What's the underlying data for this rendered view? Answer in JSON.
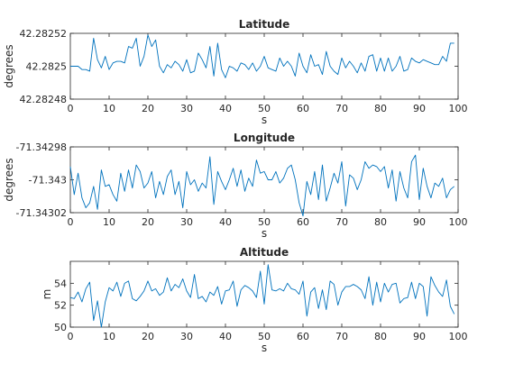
{
  "chart_data": [
    {
      "type": "line",
      "title": "Latitude",
      "xlabel": "s",
      "ylabel": "degrees",
      "xlim": [
        0,
        100
      ],
      "ylim": [
        42.28248,
        42.28252
      ],
      "xticks": [
        "0",
        "10",
        "20",
        "30",
        "40",
        "50",
        "60",
        "70",
        "80",
        "90",
        "100"
      ],
      "yticks": [
        "42.28252",
        "42.2825",
        "42.28248"
      ],
      "ytick_values": [
        42.28252,
        42.2825,
        42.28248
      ],
      "series": [
        {
          "color": "#0072BD",
          "x": [
            0,
            1,
            2,
            3,
            4,
            5,
            6,
            7,
            8,
            9,
            10,
            11,
            12,
            13,
            14,
            15,
            16,
            17,
            18,
            19,
            20,
            21,
            22,
            23,
            24,
            25,
            26,
            27,
            28,
            29,
            30,
            31,
            32,
            33,
            34,
            35,
            36,
            37,
            38,
            39,
            40,
            41,
            42,
            43,
            44,
            45,
            46,
            47,
            48,
            49,
            50,
            51,
            52,
            53,
            54,
            55,
            56,
            57,
            58,
            59,
            60,
            61,
            62,
            63,
            64,
            65,
            66,
            67,
            68,
            69,
            70,
            71,
            72,
            73,
            74,
            75,
            76,
            77,
            78,
            79,
            80,
            81,
            82,
            83,
            84,
            85,
            86,
            87,
            88,
            89,
            90,
            91,
            92,
            93,
            94,
            95,
            96,
            97,
            98,
            99
          ],
          "y": [
            42.2825,
            42.2825,
            42.2825,
            42.282498,
            42.282498,
            42.282497,
            42.282517,
            42.282504,
            42.282499,
            42.282506,
            42.282498,
            42.282502,
            42.282503,
            42.282503,
            42.282502,
            42.282512,
            42.282511,
            42.282517,
            42.2825,
            42.282506,
            42.282519,
            42.282512,
            42.282516,
            42.2825,
            42.282496,
            42.282501,
            42.282499,
            42.282503,
            42.282501,
            42.282497,
            42.282504,
            42.282496,
            42.282497,
            42.282508,
            42.282504,
            42.282499,
            42.282512,
            42.282494,
            42.282514,
            42.282498,
            42.282493,
            42.2825,
            42.282499,
            42.282497,
            42.282502,
            42.282501,
            42.282498,
            42.282502,
            42.282497,
            42.2825,
            42.282506,
            42.282499,
            42.282498,
            42.282497,
            42.282505,
            42.2825,
            42.282503,
            42.2825,
            42.282494,
            42.282508,
            42.2825,
            42.282496,
            42.282507,
            42.2825,
            42.282501,
            42.282495,
            42.282509,
            42.2825,
            42.282497,
            42.282495,
            42.282505,
            42.282499,
            42.282503,
            42.2825,
            42.282496,
            42.282502,
            42.282497,
            42.282506,
            42.282507,
            42.282497,
            42.282505,
            42.282497,
            42.282505,
            42.282497,
            42.2825,
            42.282506,
            42.282497,
            42.282498,
            42.282505,
            42.282503,
            42.282502,
            42.282504,
            42.282503,
            42.282502,
            42.282501,
            42.282501,
            42.282506,
            42.282503,
            42.282514,
            42.282514
          ]
        }
      ]
    },
    {
      "type": "line",
      "title": "Longitude",
      "xlabel": "s",
      "ylabel": "degrees",
      "xlim": [
        0,
        100
      ],
      "ylim": [
        -71.34302,
        -71.34298
      ],
      "xticks": [
        "0",
        "10",
        "20",
        "30",
        "40",
        "50",
        "60",
        "70",
        "80",
        "90",
        "100"
      ],
      "yticks": [
        "-71.34298",
        "-71.343",
        "-71.34302"
      ],
      "ytick_values": [
        -71.34298,
        -71.343,
        -71.34302
      ],
      "series": [
        {
          "color": "#0072BD",
          "x": [
            0,
            1,
            2,
            3,
            4,
            5,
            6,
            7,
            8,
            9,
            10,
            11,
            12,
            13,
            14,
            15,
            16,
            17,
            18,
            19,
            20,
            21,
            22,
            23,
            24,
            25,
            26,
            27,
            28,
            29,
            30,
            31,
            32,
            33,
            34,
            35,
            36,
            37,
            38,
            39,
            40,
            41,
            42,
            43,
            44,
            45,
            46,
            47,
            48,
            49,
            50,
            51,
            52,
            53,
            54,
            55,
            56,
            57,
            58,
            59,
            60,
            61,
            62,
            63,
            64,
            65,
            66,
            67,
            68,
            69,
            70,
            71,
            72,
            73,
            74,
            75,
            76,
            77,
            78,
            79,
            80,
            81,
            82,
            83,
            84,
            85,
            86,
            87,
            88,
            89,
            90,
            91,
            92,
            93,
            94,
            95,
            96,
            97,
            98,
            99
          ],
          "y": [
            -71.342992,
            -71.343009,
            -71.342996,
            -71.343011,
            -71.343017,
            -71.343014,
            -71.343004,
            -71.343018,
            -71.342994,
            -71.343004,
            -71.343003,
            -71.343009,
            -71.343013,
            -71.342996,
            -71.343007,
            -71.342994,
            -71.343005,
            -71.342991,
            -71.342995,
            -71.343005,
            -71.343002,
            -71.342995,
            -71.343011,
            -71.343001,
            -71.343009,
            -71.342998,
            -71.342994,
            -71.343009,
            -71.343001,
            -71.343017,
            -71.342995,
            -71.343003,
            -71.343,
            -71.343007,
            -71.343002,
            -71.343005,
            -71.342986,
            -71.343015,
            -71.342995,
            -71.343001,
            -71.343006,
            -71.343,
            -71.342993,
            -71.343004,
            -71.342994,
            -71.343007,
            -71.342999,
            -71.343004,
            -71.342988,
            -71.342996,
            -71.342995,
            -71.343,
            -71.343,
            -71.342995,
            -71.343002,
            -71.342999,
            -71.342993,
            -71.342991,
            -71.343,
            -71.343014,
            -71.343022,
            -71.343001,
            -71.343009,
            -71.342995,
            -71.343012,
            -71.342991,
            -71.343013,
            -71.343005,
            -71.342996,
            -71.343002,
            -71.342989,
            -71.343016,
            -71.342997,
            -71.342999,
            -71.343006,
            -71.343,
            -71.342989,
            -71.342993,
            -71.342991,
            -71.342992,
            -71.342995,
            -71.342992,
            -71.343005,
            -71.342994,
            -71.343013,
            -71.342995,
            -71.343005,
            -71.343011,
            -71.342989,
            -71.342985,
            -71.343012,
            -71.342993,
            -71.343004,
            -71.343011,
            -71.343002,
            -71.343004,
            -71.342999,
            -71.343011,
            -71.343006,
            -71.343004
          ]
        }
      ]
    },
    {
      "type": "line",
      "title": "Altitude",
      "xlabel": "s",
      "ylabel": "m",
      "xlim": [
        0,
        100
      ],
      "ylim": [
        50,
        56
      ],
      "xticks": [
        "0",
        "10",
        "20",
        "30",
        "40",
        "50",
        "60",
        "70",
        "80",
        "90",
        "100"
      ],
      "yticks": [
        "54",
        "52",
        "50"
      ],
      "ytick_values": [
        54,
        52,
        50
      ],
      "series": [
        {
          "color": "#0072BD",
          "x": [
            0,
            1,
            2,
            3,
            4,
            5,
            6,
            7,
            8,
            9,
            10,
            11,
            12,
            13,
            14,
            15,
            16,
            17,
            18,
            19,
            20,
            21,
            22,
            23,
            24,
            25,
            26,
            27,
            28,
            29,
            30,
            31,
            32,
            33,
            34,
            35,
            36,
            37,
            38,
            39,
            40,
            41,
            42,
            43,
            44,
            45,
            46,
            47,
            48,
            49,
            50,
            51,
            52,
            53,
            54,
            55,
            56,
            57,
            58,
            59,
            60,
            61,
            62,
            63,
            64,
            65,
            66,
            67,
            68,
            69,
            70,
            71,
            72,
            73,
            74,
            75,
            76,
            77,
            78,
            79,
            80,
            81,
            82,
            83,
            84,
            85,
            86,
            87,
            88,
            89,
            90,
            91,
            92,
            93,
            94,
            95,
            96,
            97,
            98,
            99
          ],
          "y": [
            52.7,
            52.6,
            53.2,
            52.3,
            53.5,
            54.1,
            50.6,
            52.4,
            50.0,
            52.3,
            53.6,
            53.3,
            54.1,
            52.8,
            54.0,
            54.2,
            52.6,
            52.4,
            52.8,
            53.3,
            54.2,
            53.3,
            53.5,
            52.9,
            53.2,
            54.5,
            53.3,
            53.9,
            53.6,
            54.4,
            53.3,
            52.7,
            54.8,
            52.6,
            52.8,
            52.3,
            53.2,
            52.9,
            53.7,
            52.1,
            53.3,
            53.4,
            54.2,
            51.9,
            53.4,
            53.8,
            53.6,
            53.3,
            52.7,
            55.1,
            52.1,
            55.7,
            53.4,
            53.3,
            53.5,
            53.3,
            54.0,
            53.5,
            53.4,
            53.0,
            54.2,
            51.0,
            53.2,
            53.6,
            51.7,
            53.4,
            51.6,
            54.2,
            53.9,
            52.0,
            53.2,
            53.7,
            53.7,
            53.9,
            53.7,
            53.4,
            52.6,
            54.6,
            52.0,
            54.1,
            52.3,
            54.0,
            53.2,
            53.9,
            54.0,
            52.2,
            52.6,
            52.7,
            54.1,
            52.6,
            54.0,
            53.7,
            51.0,
            54.6,
            53.8,
            53.2,
            52.8,
            54.3,
            51.9,
            51.2
          ]
        }
      ]
    }
  ]
}
